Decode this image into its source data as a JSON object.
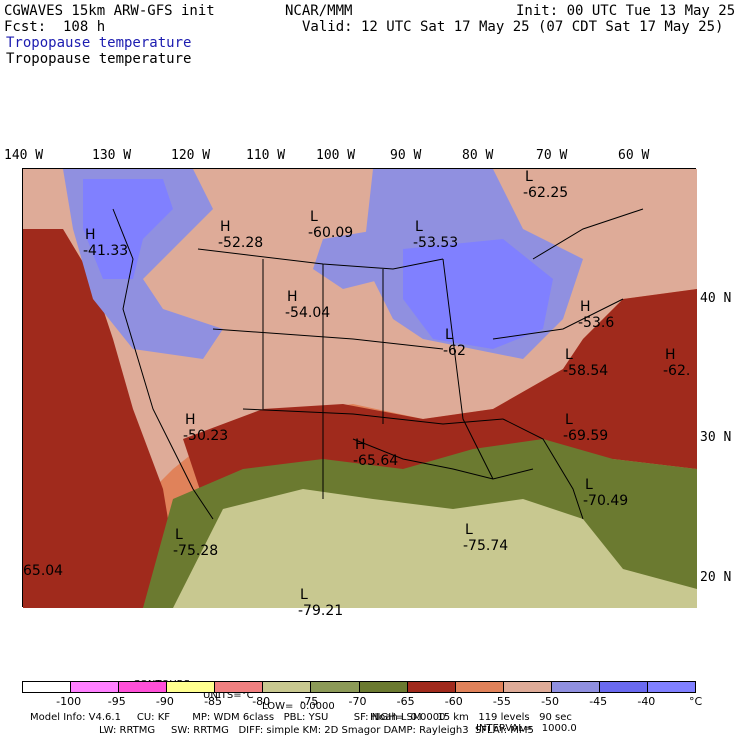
{
  "header": {
    "model": "CGWAVES 15km ARW-GFS init",
    "org": "NCAR/MMM",
    "init": "Init: 00 UTC Tue 13 May 25",
    "fcst": "Fcst:  108 h",
    "valid": "Valid: 12 UTC Sat 17 May 25 (07 CDT Sat 17 May 25)",
    "field1": "Tropopause temperature",
    "field2": "Tropopause temperature"
  },
  "longitudes": [
    "140 W",
    "130 W",
    "120 W",
    "110 W",
    "100 W",
    "90 W",
    "80 W",
    "70 W",
    "60 W"
  ],
  "latitudes": [
    "40 N",
    "30 N",
    "20 N"
  ],
  "map_labels": [
    {
      "letter": "H",
      "value": "-41.33"
    },
    {
      "letter": "H",
      "value": "-52.28"
    },
    {
      "letter": "L",
      "value": "-60.09"
    },
    {
      "letter": "L",
      "value": "-53.53"
    },
    {
      "letter": "L",
      "value": "-62.25"
    },
    {
      "letter": "H",
      "value": "-54.04"
    },
    {
      "letter": "L",
      "value": "-62"
    },
    {
      "letter": "H",
      "value": "-53.6"
    },
    {
      "letter": "L",
      "value": "-58.54"
    },
    {
      "letter": "H",
      "value": "-62."
    },
    {
      "letter": "H",
      "value": "-50.23"
    },
    {
      "letter": "H",
      "value": "-65.64"
    },
    {
      "letter": "L",
      "value": "-69.59"
    },
    {
      "letter": "L",
      "value": "-70.49"
    },
    {
      "letter": "L",
      "value": "-75.28"
    },
    {
      "letter": "L",
      "value": "-75.74"
    },
    {
      "letter": "",
      "value": "65.04"
    },
    {
      "letter": "L",
      "value": "-79.21"
    }
  ],
  "contours": {
    "title": "CONTOURS:",
    "units": "UNITS=°C",
    "low": "LOW=  0.0000",
    "high": "HIGH=  0.0000",
    "interval": "INTERVAL=   1000.0"
  },
  "colorbar": {
    "colors": [
      "#ffffff",
      "#ff80ff",
      "#ff50d8",
      "#ffff90",
      "#f08080",
      "#c8c890",
      "#8c9a58",
      "#6b7a30",
      "#a02a1c",
      "#e0825a",
      "#deab98",
      "#9090e0",
      "#6a6af0",
      "#8080ff"
    ],
    "ticks": [
      "-100",
      "-95",
      "-90",
      "-85",
      "-80",
      "-75",
      "-70",
      "-65",
      "-60",
      "-55",
      "-50",
      "-45",
      "-40",
      "°C"
    ]
  },
  "info": {
    "line1": "Model Info: V4.6.1     CU: KF       MP: WDM 6class   PBL: YSU        SF: Noah LSM     15 km   119 levels   90 sec",
    "line2": "LW: RRTMG     SW: RRTMG   DIFF: simple KM: 2D Smagor DAMP: Rayleigh3  SFLAY: MM5"
  }
}
